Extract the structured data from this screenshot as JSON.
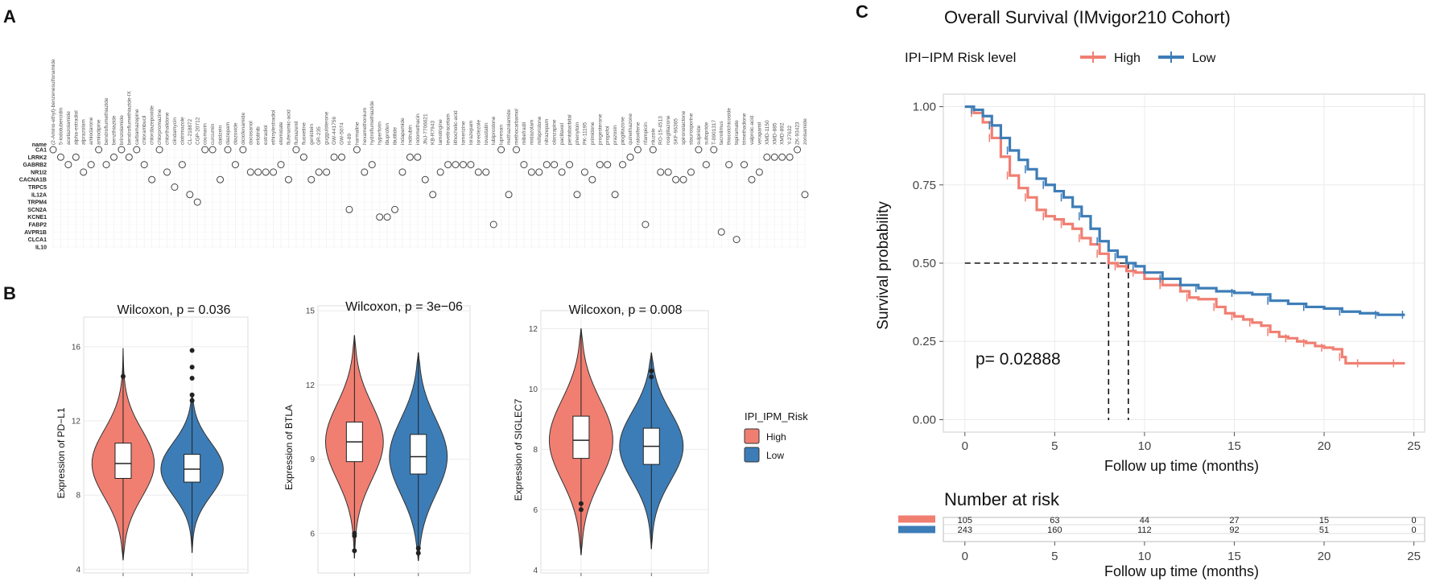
{
  "panels": {
    "a": "A",
    "b": "B",
    "c": "C"
  },
  "colors": {
    "high": "#F07F72",
    "low": "#3D7DB7",
    "grid": "#EBEBEB",
    "axis": "#333333"
  },
  "chart_data": [
    {
      "type": "scatter",
      "panel": "A",
      "title": "",
      "row_header": "name",
      "genes": [
        "CA1",
        "LRRK2",
        "GABRB2",
        "NR1I2",
        "CACNA1B",
        "TRPC5",
        "IL12A",
        "TRPM4",
        "SCN2A",
        "KCNE1",
        "FABP2",
        "AVPR1B",
        "CLCA1",
        "IL10"
      ],
      "drugs": [
        "(2-Amino-ethyl)-benzenesulfonamide",
        "5-iodotubercidin",
        "acetazolamide",
        "alpha-estradiol",
        "alprazolam",
        "amiodarone",
        "amlodipine",
        "bendroflumethiazide",
        "benzthiazide",
        "brinzolamide",
        "bendroflumethiazide-IX",
        "carbamazepine",
        "chlorambucil",
        "chlordiazepoxide",
        "chlorpromazine",
        "chlorthalidone",
        "clindamycin",
        "clotrimazole",
        "CL-218872",
        "CGP-20712",
        "coumarin",
        "curcumin",
        "daidzein",
        "diazepam",
        "diazoxide",
        "diclofenamide",
        "docosanol",
        "erlotinib",
        "estradiol",
        "ethinylestradiol",
        "etomidate",
        "flufenamic-acid",
        "flumazenil",
        "fluoxetine",
        "genistein",
        "GR-235",
        "guggulsterone",
        "GW-441756",
        "GW-5074",
        "H-89",
        "harmaline",
        "hexamethonium",
        "hydroflumethiazide",
        "hyperforin",
        "ibuprofen",
        "ibutilide",
        "indapamide",
        "indirubin",
        "indomethacin",
        "JNJ-7706621",
        "KB-R7943",
        "lamotrigine",
        "levetiracetam",
        "lithocholic-acid",
        "lomerizine",
        "lorazepam",
        "loreclezole",
        "lovastatin",
        "lubiprostone",
        "lupresan",
        "methazolamide",
        "methocarbamol",
        "mibefradil",
        "midazolam",
        "mifepristone",
        "nitrazepam",
        "olanzapine",
        "paclitaxel",
        "pentobarbital",
        "phenytoin",
        "PK-11195",
        "primidone",
        "progesterone",
        "propofol",
        "prazosin",
        "pioglitazone",
        "quinethazone",
        "raloxifene",
        "rifampicin",
        "riluzole",
        "RO-15-4513",
        "rosiglitazone",
        "SKF-96365",
        "spironolactone",
        "staurosporine",
        "sulpiride",
        "sultopride",
        "T-0901317",
        "tacrolimus",
        "thiocolchicoside",
        "topiramate",
        "trimethadione",
        "valproic-acid",
        "verapamil",
        "XMD-1150",
        "XMD-885",
        "XMD-892",
        "Y-27632",
        "ZK-93423",
        "zonisamide"
      ],
      "points": [
        [
          0,
          0
        ],
        [
          1,
          1
        ],
        [
          2,
          2
        ],
        [
          3,
          1
        ],
        [
          4,
          3
        ],
        [
          5,
          2
        ],
        [
          6,
          0
        ],
        [
          7,
          2
        ],
        [
          8,
          1
        ],
        [
          9,
          0
        ],
        [
          10,
          1
        ],
        [
          11,
          0
        ],
        [
          12,
          2
        ],
        [
          13,
          4
        ],
        [
          14,
          0
        ],
        [
          15,
          3
        ],
        [
          16,
          5
        ],
        [
          17,
          2
        ],
        [
          18,
          6
        ],
        [
          19,
          7
        ],
        [
          20,
          0
        ],
        [
          21,
          0
        ],
        [
          22,
          4
        ],
        [
          23,
          0
        ],
        [
          24,
          2
        ],
        [
          25,
          0
        ],
        [
          26,
          3
        ],
        [
          27,
          3
        ],
        [
          28,
          3
        ],
        [
          29,
          3
        ],
        [
          30,
          2
        ],
        [
          31,
          4
        ],
        [
          32,
          0
        ],
        [
          33,
          1
        ],
        [
          34,
          4
        ],
        [
          35,
          3
        ],
        [
          36,
          3
        ],
        [
          37,
          1
        ],
        [
          38,
          1
        ],
        [
          39,
          8
        ],
        [
          40,
          0
        ],
        [
          41,
          3
        ],
        [
          42,
          2
        ],
        [
          43,
          9
        ],
        [
          44,
          9
        ],
        [
          45,
          8
        ],
        [
          46,
          3
        ],
        [
          47,
          1
        ],
        [
          48,
          1
        ],
        [
          49,
          4
        ],
        [
          50,
          6
        ],
        [
          51,
          3
        ],
        [
          52,
          2
        ],
        [
          53,
          2
        ],
        [
          54,
          2
        ],
        [
          55,
          2
        ],
        [
          56,
          3
        ],
        [
          57,
          3
        ],
        [
          58,
          10
        ],
        [
          59,
          0
        ],
        [
          60,
          6
        ],
        [
          61,
          0
        ],
        [
          62,
          2
        ],
        [
          63,
          3
        ],
        [
          64,
          3
        ],
        [
          65,
          2
        ],
        [
          66,
          2
        ],
        [
          67,
          3
        ],
        [
          68,
          2
        ],
        [
          69,
          6
        ],
        [
          70,
          3
        ],
        [
          71,
          4
        ],
        [
          72,
          2
        ],
        [
          73,
          2
        ],
        [
          74,
          6
        ],
        [
          75,
          2
        ],
        [
          76,
          1
        ],
        [
          77,
          0
        ],
        [
          78,
          10
        ],
        [
          79,
          0
        ],
        [
          80,
          3
        ],
        [
          81,
          3
        ],
        [
          82,
          4
        ],
        [
          83,
          4
        ],
        [
          84,
          3
        ],
        [
          85,
          0
        ],
        [
          86,
          2
        ],
        [
          87,
          0
        ],
        [
          88,
          11
        ],
        [
          89,
          2
        ],
        [
          90,
          12
        ],
        [
          91,
          2
        ],
        [
          92,
          4
        ],
        [
          93,
          3
        ],
        [
          94,
          1
        ],
        [
          95,
          1
        ],
        [
          96,
          1
        ],
        [
          97,
          1
        ],
        [
          98,
          0
        ],
        [
          99,
          6
        ]
      ]
    },
    {
      "type": "violin",
      "panel": "B1",
      "title": "Wilcoxon, p = 0.036",
      "ylabel": "Expression of PD−L1",
      "ylim": [
        3.8,
        17.6
      ],
      "yticks": [
        4,
        8,
        12,
        16
      ],
      "groups": [
        {
          "name": "High",
          "q1": 8.9,
          "median": 9.7,
          "q3": 10.8,
          "min": 4.5,
          "max": 15.9,
          "outliers": [
            14.4
          ]
        },
        {
          "name": "Low",
          "q1": 8.7,
          "median": 9.4,
          "q3": 10.2,
          "min": 4.9,
          "max": 13.5,
          "outliers": [
            13.1,
            13.4,
            14.3,
            14.9,
            15.8
          ]
        }
      ]
    },
    {
      "type": "violin",
      "panel": "B2",
      "title": "Wilcoxon, p = 3e−06",
      "ylabel": "Expression of BTLA",
      "ylim": [
        4.4,
        15.2
      ],
      "yticks": [
        6,
        9,
        12,
        15
      ],
      "groups": [
        {
          "name": "High",
          "q1": 8.9,
          "median": 9.7,
          "q3": 10.5,
          "min": 5.0,
          "max": 14.0,
          "outliers": [
            5.3,
            5.9,
            6.0
          ]
        },
        {
          "name": "Low",
          "q1": 8.4,
          "median": 9.1,
          "q3": 10.0,
          "min": 4.9,
          "max": 13.3,
          "outliers": [
            5.2,
            5.4
          ]
        }
      ]
    },
    {
      "type": "violin",
      "panel": "B3",
      "title": "Wilcoxon, p = 0.008",
      "ylabel": "Expression of SIGLEC7",
      "ylim": [
        3.9,
        12.6
      ],
      "yticks": [
        4,
        6,
        8,
        10,
        12
      ],
      "groups": [
        {
          "name": "High",
          "q1": 7.7,
          "median": 8.3,
          "q3": 9.1,
          "min": 4.5,
          "max": 12.0,
          "outliers": [
            6.0,
            6.2
          ]
        },
        {
          "name": "Low",
          "q1": 7.5,
          "median": 8.1,
          "q3": 8.7,
          "min": 4.7,
          "max": 11.2,
          "outliers": [
            10.4,
            10.6
          ]
        }
      ]
    },
    {
      "type": "line",
      "panel": "C",
      "title": "Overall Survival (IMvigor210 Cohort)",
      "xlabel": "Follow up time (months)",
      "ylabel": "Survival probability",
      "xlim": [
        -1.2,
        25.6
      ],
      "ylim": [
        -0.04,
        1.04
      ],
      "xticks": [
        0,
        5,
        10,
        15,
        20,
        25
      ],
      "yticks": [
        "0.00",
        "0.25",
        "0.50",
        "0.75",
        "1.00"
      ],
      "pvalue": "p= 0.02888",
      "median_line_y": 0.5,
      "median_x": [
        8.0,
        9.1
      ],
      "series": [
        {
          "name": "High",
          "x": [
            0,
            0.5,
            1,
            1.5,
            2,
            2.5,
            3,
            3.5,
            4,
            4.5,
            5,
            5.5,
            6,
            6.5,
            7,
            7.5,
            8,
            8.5,
            9,
            9.5,
            10,
            11,
            12,
            12.5,
            13,
            14,
            14.5,
            15,
            15.5,
            16,
            16.5,
            17,
            17.5,
            18,
            18.5,
            19,
            19.5,
            20,
            20.5,
            21,
            21.2,
            22,
            23,
            24,
            24.5
          ],
          "y": [
            1.0,
            0.98,
            0.95,
            0.9,
            0.84,
            0.78,
            0.74,
            0.71,
            0.67,
            0.65,
            0.64,
            0.625,
            0.61,
            0.58,
            0.56,
            0.53,
            0.5,
            0.49,
            0.475,
            0.47,
            0.45,
            0.43,
            0.41,
            0.39,
            0.385,
            0.36,
            0.34,
            0.33,
            0.32,
            0.31,
            0.3,
            0.28,
            0.265,
            0.26,
            0.25,
            0.245,
            0.235,
            0.23,
            0.225,
            0.2,
            0.18,
            0.18,
            0.18,
            0.18,
            0.18
          ]
        },
        {
          "name": "Low",
          "x": [
            0,
            0.5,
            1,
            1.5,
            2,
            2.5,
            3,
            3.5,
            4,
            4.5,
            5,
            5.5,
            6,
            6.5,
            7,
            7.5,
            8,
            8.5,
            9,
            9.5,
            10,
            11,
            12,
            13,
            14,
            15,
            16,
            17,
            18,
            19,
            20,
            21,
            22,
            23,
            24,
            24.5
          ],
          "y": [
            1.0,
            0.99,
            0.97,
            0.94,
            0.9,
            0.86,
            0.83,
            0.8,
            0.77,
            0.75,
            0.73,
            0.71,
            0.68,
            0.65,
            0.61,
            0.57,
            0.54,
            0.52,
            0.5,
            0.49,
            0.47,
            0.45,
            0.43,
            0.42,
            0.41,
            0.405,
            0.4,
            0.38,
            0.37,
            0.36,
            0.355,
            0.345,
            0.34,
            0.335,
            0.335,
            0.335
          ]
        }
      ],
      "risk_table": {
        "title": "Number at risk",
        "xlabel": "Follow up time (months)",
        "times": [
          0,
          5,
          10,
          15,
          20,
          25
        ],
        "rows": [
          {
            "name": "High",
            "values": [
              105,
              63,
              44,
              27,
              15,
              0
            ]
          },
          {
            "name": "Low",
            "values": [
              243,
              160,
              112,
              92,
              51,
              0
            ]
          }
        ]
      }
    }
  ],
  "legend_b": {
    "title": "IPI_IPM_Risk",
    "items": [
      "High",
      "Low"
    ]
  },
  "legend_c": {
    "title": "IPI−IPM Risk level",
    "items": [
      "High",
      "Low"
    ]
  }
}
